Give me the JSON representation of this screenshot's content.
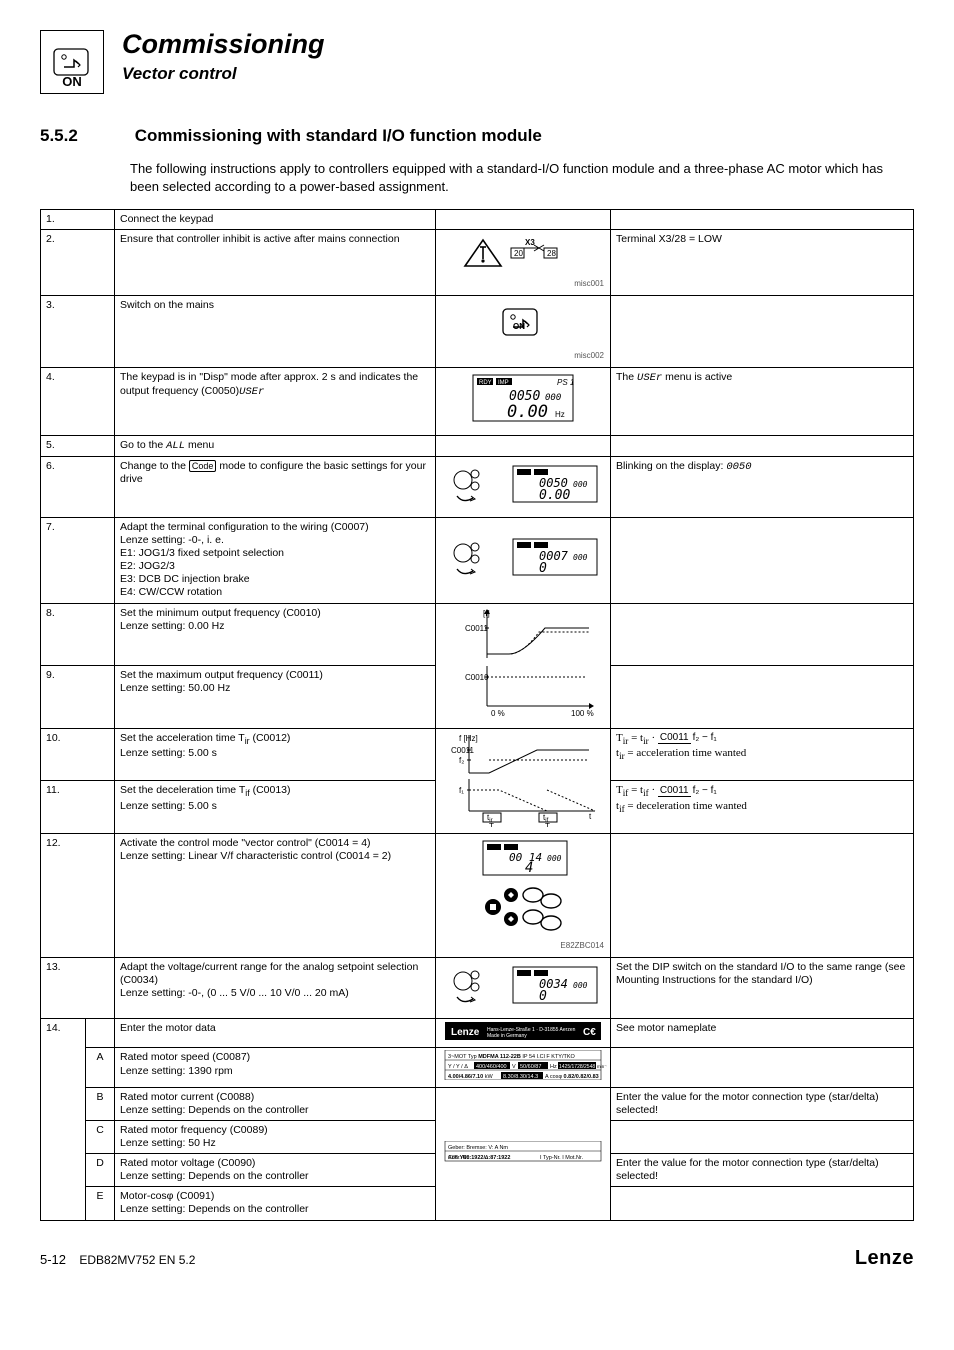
{
  "header": {
    "icon_label": "ON",
    "title": "Commissioning",
    "subtitle": "Vector control"
  },
  "section": {
    "number": "5.5.2",
    "title": "Commissioning with standard I/O function module"
  },
  "intro": "The following instructions apply to controllers equipped with a standard-I/O function module and a three-phase AC motor which has been selected according to a power-based assignment.",
  "rows": [
    {
      "n": "1.",
      "desc": "Connect the keypad"
    },
    {
      "n": "2.",
      "desc": "Ensure that controller inhibit is active after mains connection",
      "note": "Terminal X3/28 = LOW",
      "img_tag": "misc001",
      "svg": "triangle_x3"
    },
    {
      "n": "3.",
      "desc": "Switch on the mains",
      "img_tag": "misc002",
      "svg": "onswitch"
    },
    {
      "n": "4.",
      "desc_a": "The keypad is in \"Disp\" mode after approx. 2 s and indicates the output frequency (C0050)",
      "note_a": "The ",
      "note_b": " menu is active",
      "menu": "USEr",
      "svg": "lcd0050"
    },
    {
      "n": "5.",
      "desc_a": "Go to the ",
      "desc_b": " menu",
      "menu": "ALL"
    },
    {
      "n": "6.",
      "desc_a": "Change to the ",
      "desc_b": " mode to configure the basic settings for your drive",
      "code": "Code",
      "note_a": "Blinking on the display: ",
      "note_code": "0050",
      "svg": "keypad_lcd"
    },
    {
      "n": "7.",
      "desc": "Adapt the terminal configuration to the wiring (C0007)\nLenze setting: -0-, i. e.\nE1: JOG1/3 fixed setpoint selection\nE2: JOG2/3\nE3: DCB DC injection brake\nE4: CW/CCW rotation",
      "svg": "keypad_lcd2"
    },
    {
      "n": "8.",
      "desc": "Set the minimum output frequency (C0010)\nLenze setting: 0.00 Hz",
      "svg": "graph_top"
    },
    {
      "n": "9.",
      "desc": "Set the maximum output frequency (C0011)\nLenze setting: 50.00 Hz",
      "svg": "graph_bot"
    },
    {
      "n": "10.",
      "desc_a": "Set the acceleration time T",
      "sub1": "ir",
      "desc_b": " (C0012)\nLenze setting: 5.00 s",
      "formula": {
        "lhs_sub": "ir",
        "rhs_sub": "ir",
        "top": "C0011",
        "bot": "f₂ − f₁",
        "tail": "t",
        "tail2": " = acceleration time wanted"
      },
      "svg": "ramp_top"
    },
    {
      "n": "11.",
      "desc_a": "Set the deceleration time T",
      "sub1": "if",
      "desc_b": " (C0013)\nLenze setting: 5.00 s",
      "formula": {
        "lhs_sub": "if",
        "rhs_sub": "if",
        "top": "C0011",
        "bot": "f₂ − f₁",
        "tail": "t",
        "tail2": " = deceleration time wanted"
      },
      "svg": "ramp_bot"
    },
    {
      "n": "12.",
      "desc": "Activate the control mode \"vector control\" (C0014 = 4)\nLenze setting: Linear V/f characteristic control (C0014 = 2)",
      "img_tag": "E82ZBC014",
      "svg": "keypad_dip"
    },
    {
      "n": "13.",
      "desc": "Adapt the voltage/current range for the analog setpoint selection (C0034)\nLenze setting: -0-, (0 ... 5 V/0 ... 10 V/0 ... 20 mA)",
      "note": "Set the DIP switch on the standard I/O to the same range (see Mounting Instructions for the standard I/O)",
      "svg": "keypad_lcd3"
    },
    {
      "n": "14.",
      "desc": "Enter the motor data",
      "note": "See motor nameplate",
      "svg": "nameplate_head",
      "subs": [
        {
          "s": "A",
          "desc": "Rated motor speed (C0087)\nLenze setting: 1390 rpm",
          "svg": "nameplate_body"
        },
        {
          "s": "B",
          "desc": "Rated motor current (C0088)\nLenze setting: Depends on the controller",
          "note": "Enter the value for the motor connection type (star/delta) selected!",
          "svg": "nameplate_foot"
        },
        {
          "s": "C",
          "desc": "Rated motor frequency (C0089)\nLenze setting: 50 Hz"
        },
        {
          "s": "D",
          "desc": "Rated motor voltage (C0090)\nLenze setting: Depends on the controller",
          "note": "Enter the value for the motor connection type (star/delta) selected!"
        },
        {
          "s": "E",
          "desc": "Motor-cosφ (C0091)\nLenze setting: Depends on the controller"
        }
      ]
    }
  ],
  "footer": {
    "page": "5-12",
    "doc": "EDB82MV752 EN 5.2",
    "brand": "Lenze"
  }
}
